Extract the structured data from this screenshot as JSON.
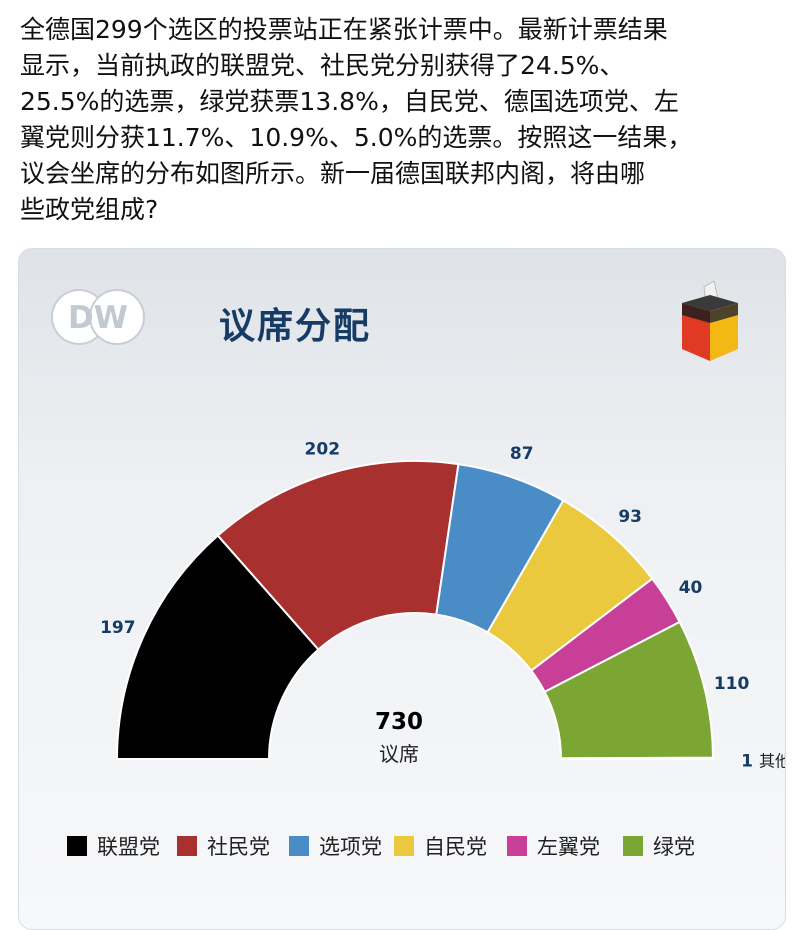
{
  "post": {
    "text": "全德国299个选区的投票站正在紧张计票中。最新计票结果\n显示，当前执政的联盟党、社民党分别获得了24.5%、\n25.5%的选票，绿党获票13.8%，自民党、德国选项党、左\n翼党则分获11.7%、10.9%、5.0%的选票。按照这一结果，\n议会坐席的分布如图所示。新一届德国联邦内阁，将由哪\n些政党组成?"
  },
  "card": {
    "logo_text": "DW",
    "title": "议席分配"
  },
  "colors": {
    "title": "#163c66",
    "label": "#163c66"
  },
  "chart_data": {
    "type": "pie",
    "subtype": "half-donut",
    "title": "议席分配",
    "total": 730,
    "total_label": "议席",
    "series": [
      {
        "name": "联盟党",
        "value": 197,
        "color": "#000000"
      },
      {
        "name": "社民党",
        "value": 202,
        "color": "#a8302e"
      },
      {
        "name": "选项党",
        "value": 87,
        "color": "#4a8cc6"
      },
      {
        "name": "自民党",
        "value": 93,
        "color": "#ebc93f"
      },
      {
        "name": "左翼党",
        "value": 40,
        "color": "#c73f96"
      },
      {
        "name": "绿党",
        "value": 110,
        "color": "#7ba634"
      },
      {
        "name": "其他",
        "value": 1,
        "color": "#9a9a9a"
      }
    ],
    "legend": [
      "联盟党",
      "社民党",
      "选项党",
      "自民党",
      "左翼党",
      "绿党"
    ],
    "legend_position": "bottom"
  }
}
